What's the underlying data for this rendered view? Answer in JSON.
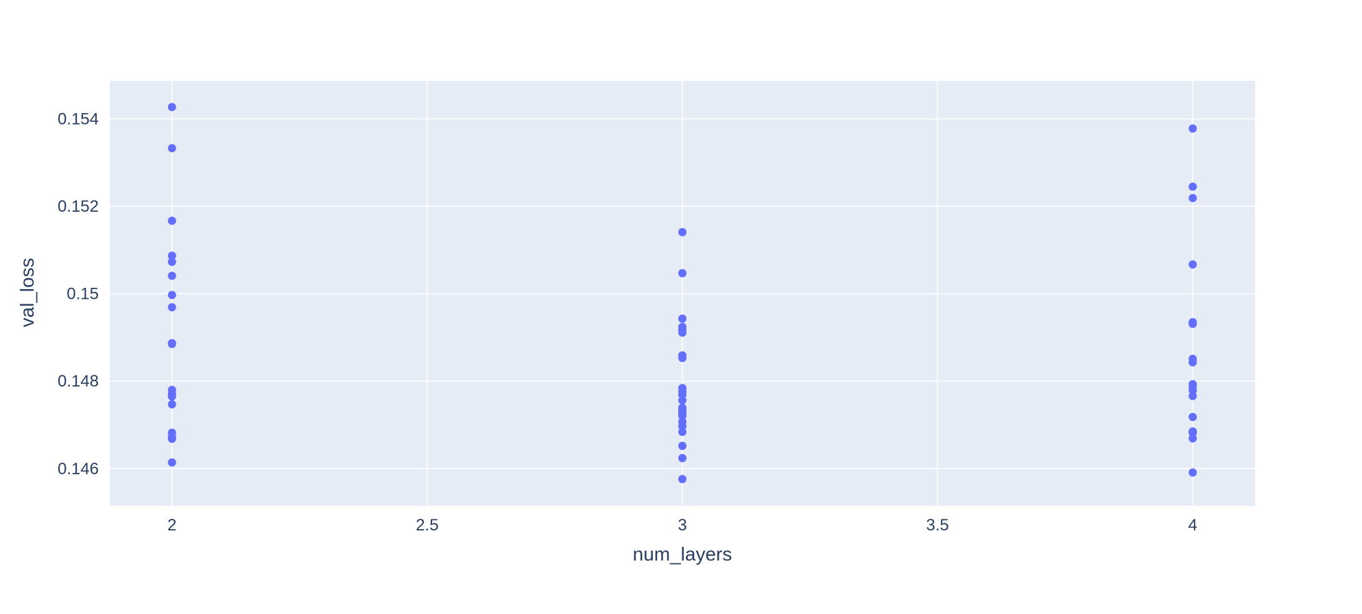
{
  "chart_data": {
    "type": "scatter",
    "title": "",
    "xlabel": "num_layers",
    "ylabel": "val_loss",
    "xlim": [
      1.878,
      4.122
    ],
    "ylim": [
      0.14515,
      0.15487
    ],
    "xticks": [
      2,
      2.5,
      3,
      3.5,
      4
    ],
    "xtick_labels": [
      "2",
      "2.5",
      "3",
      "3.5",
      "4"
    ],
    "yticks": [
      0.146,
      0.148,
      0.15,
      0.152,
      0.154
    ],
    "ytick_labels": [
      "0.146",
      "0.148",
      "0.15",
      "0.152",
      "0.154"
    ],
    "grid": true,
    "colors": {
      "plot_bg": "#E5ECF6",
      "grid": "#FFFFFF",
      "marker": "#636EFA",
      "text": "#2a3f5f"
    },
    "series": [
      {
        "x": [
          2,
          2,
          2,
          2,
          2,
          2,
          2,
          2,
          2,
          2,
          2,
          2,
          2,
          2,
          2,
          2,
          2,
          2,
          3,
          3,
          3,
          3,
          3,
          3,
          3,
          3,
          3,
          3,
          3,
          3,
          3,
          3,
          3,
          3,
          3,
          3,
          3,
          3,
          3,
          3,
          3,
          3,
          4,
          4,
          4,
          4,
          4,
          4,
          4,
          4,
          4,
          4,
          4,
          4,
          4,
          4,
          4,
          4,
          4,
          4,
          4
        ],
        "y": [
          0.15427,
          0.15333,
          0.15167,
          0.15087,
          0.15073,
          0.15041,
          0.14997,
          0.14969,
          0.14887,
          0.14885,
          0.1478,
          0.14771,
          0.14765,
          0.14747,
          0.14682,
          0.14672,
          0.14668,
          0.14614,
          0.15141,
          0.15047,
          0.14943,
          0.14924,
          0.14918,
          0.14911,
          0.14859,
          0.14853,
          0.14784,
          0.14776,
          0.14756,
          0.14739,
          0.14732,
          0.14728,
          0.14707,
          0.14697,
          0.14684,
          0.14652,
          0.14624,
          0.14576,
          0.14784,
          0.14769,
          0.14735,
          0.14721,
          0.15378,
          0.15245,
          0.15219,
          0.15067,
          0.14935,
          0.14932,
          0.14851,
          0.14843,
          0.14793,
          0.14788,
          0.14779,
          0.14766,
          0.14718,
          0.14685,
          0.14682,
          0.14669,
          0.14591,
          0.14684,
          0.14931
        ]
      }
    ]
  }
}
